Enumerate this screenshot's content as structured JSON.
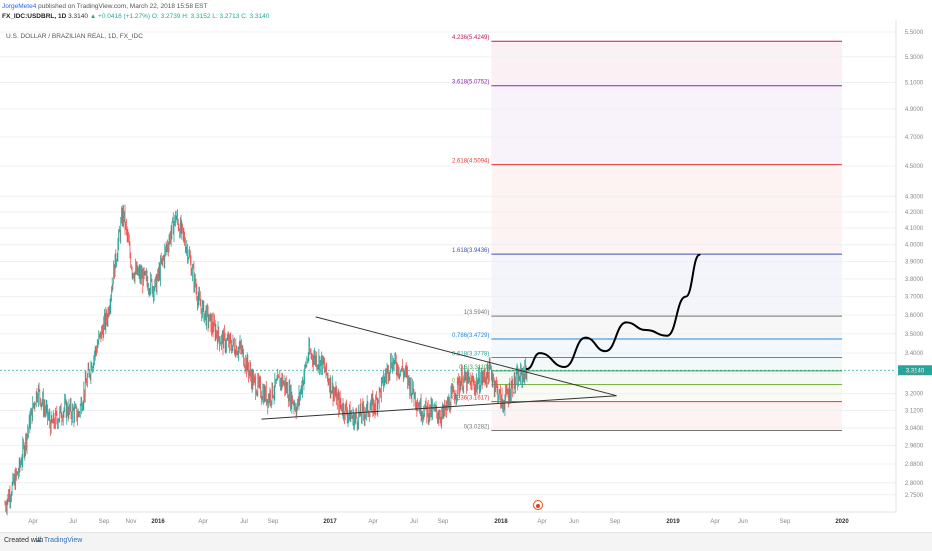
{
  "header": {
    "author": "JorgeMete4",
    "published": "published on TradingView.com, March 22, 2018 15:58 EST",
    "symbol": "FX_IDC:USDBRL, 1D",
    "last": "3.3140",
    "change": "▲ +0.0416 (+1.27%)",
    "ohlc": "O: 3.2739 H: 3.3152 L: 3.2713 C: 3.3140"
  },
  "footer": {
    "created_label": "Created with",
    "brand": "TradingView"
  },
  "colors": {
    "up": "#26a69a",
    "down": "#ef5350",
    "grid": "#eef0f3",
    "axis_text": "#888888",
    "price_marker": "#26a69a"
  },
  "chart_data": {
    "type": "candlestick",
    "title": "U.S. DOLLAR / BRAZILIAN REAL, 1D, FX_IDC",
    "ylim": [
      2.68,
      5.6
    ],
    "y_scale": "log",
    "y_ticks": [
      5.5,
      5.3,
      5.1,
      4.9,
      4.7,
      4.5,
      4.3,
      4.2,
      4.1,
      4.0,
      3.9,
      3.8,
      3.7,
      3.6,
      3.5,
      3.4,
      3.3,
      3.2,
      3.12,
      3.04,
      2.96,
      2.88,
      2.8,
      2.75
    ],
    "y_tick_labels": [
      "5.5000",
      "5.3000",
      "5.1000",
      "4.9000",
      "4.7000",
      "4.5000",
      "4.3000",
      "4.2000",
      "4.1000",
      "4.0000",
      "3.9000",
      "3.8000",
      "3.7000",
      "3.6000",
      "3.5000",
      "3.4000",
      "3.3000",
      "3.2000",
      "3.1200",
      "3.0400",
      "2.9600",
      "2.8800",
      "2.8000",
      "2.7500"
    ],
    "x_tick_labels": [
      "Apr",
      "Jul",
      "Sep",
      "Nov",
      "2016",
      "Apr",
      "Jul",
      "Sep",
      "2017",
      "Apr",
      "Jul",
      "Sep",
      "2018",
      "Apr",
      "Jun",
      "Sep",
      "2019",
      "Apr",
      "Jun",
      "Sep",
      "2020"
    ],
    "current_price": "3.3140",
    "price_path": [
      [
        "2015-01-01",
        2.71
      ],
      [
        "2015-02-01",
        2.85
      ],
      [
        "2015-03-15",
        3.22
      ],
      [
        "2015-04-15",
        3.05
      ],
      [
        "2015-05-15",
        3.13
      ],
      [
        "2015-06-15",
        3.1
      ],
      [
        "2015-07-15",
        3.35
      ],
      [
        "2015-08-20",
        3.6
      ],
      [
        "2015-09-24",
        4.2
      ],
      [
        "2015-10-15",
        3.85
      ],
      [
        "2015-11-10",
        3.8
      ],
      [
        "2015-12-05",
        3.75
      ],
      [
        "2016-01-21",
        4.17
      ],
      [
        "2016-02-15",
        3.98
      ],
      [
        "2016-03-15",
        3.65
      ],
      [
        "2016-05-01",
        3.47
      ],
      [
        "2016-06-15",
        3.42
      ],
      [
        "2016-07-15",
        3.25
      ],
      [
        "2016-08-15",
        3.18
      ],
      [
        "2016-09-15",
        3.27
      ],
      [
        "2016-10-20",
        3.13
      ],
      [
        "2016-11-15",
        3.4
      ],
      [
        "2016-12-15",
        3.35
      ],
      [
        "2017-01-20",
        3.16
      ],
      [
        "2017-02-25",
        3.08
      ],
      [
        "2017-04-15",
        3.15
      ],
      [
        "2017-05-20",
        3.36
      ],
      [
        "2017-06-20",
        3.3
      ],
      [
        "2017-07-25",
        3.13
      ],
      [
        "2017-09-15",
        3.1
      ],
      [
        "2017-10-25",
        3.27
      ],
      [
        "2017-11-25",
        3.24
      ],
      [
        "2017-12-30",
        3.31
      ],
      [
        "2018-01-25",
        3.15
      ],
      [
        "2018-02-20",
        3.25
      ],
      [
        "2018-03-22",
        3.314
      ]
    ],
    "projection_path": [
      [
        "2018-03-22",
        3.32
      ],
      [
        "2018-04-20",
        3.4
      ],
      [
        "2018-06-15",
        3.33
      ],
      [
        "2018-08-01",
        3.48
      ],
      [
        "2018-09-15",
        3.41
      ],
      [
        "2018-11-01",
        3.56
      ],
      [
        "2018-12-15",
        3.52
      ],
      [
        "2019-02-01",
        3.49
      ],
      [
        "2019-03-15",
        3.7
      ],
      [
        "2019-04-15",
        3.94
      ]
    ],
    "triangle": {
      "upper": [
        [
          "2016-12-01",
          3.59
        ],
        [
          "2018-10-10",
          3.19
        ]
      ],
      "lower": [
        [
          "2016-08-01",
          3.08
        ],
        [
          "2018-10-10",
          3.19
        ]
      ]
    },
    "fib_levels": [
      {
        "label": "4.236(5.4249)",
        "value": 5.4249,
        "color": "#c2185b"
      },
      {
        "label": "3.618(5.0752)",
        "value": 5.0752,
        "color": "#8e24aa"
      },
      {
        "label": "2.618(4.5094)",
        "value": 4.5094,
        "color": "#e53935"
      },
      {
        "label": "1.618(3.9436)",
        "value": 3.9436,
        "color": "#3f51b5"
      },
      {
        "label": "1(3.5940)",
        "value": 3.594,
        "color": "#757575"
      },
      {
        "label": "0.786(3.4729)",
        "value": 3.4729,
        "color": "#1e88e5"
      },
      {
        "label": "0.618(3.3778)",
        "value": 3.3778,
        "color": "#26a69a"
      },
      {
        "label": "0.5(3.3110)",
        "value": 3.311,
        "color": "#43a047"
      },
      {
        "label": "0.382(3.2442)",
        "value": 3.2442,
        "color": "#7cb342"
      },
      {
        "label": "0.236(3.1617)",
        "value": 3.1617,
        "color": "#e53935"
      },
      {
        "label": "0(3.0282)",
        "value": 3.0282,
        "color": "#757575"
      }
    ],
    "fib_start": "2018-01-01",
    "fib_end": "2020-03-01"
  }
}
